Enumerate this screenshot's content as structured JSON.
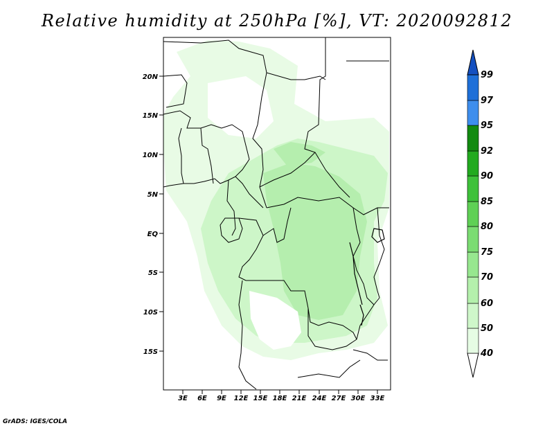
{
  "title": "Relative humidity at 250hPa [%], VT: 2020092812",
  "credit": "GrADS: IGES/COLA",
  "map": {
    "lon_range": [
      0,
      35
    ],
    "lat_range": [
      -20,
      25
    ],
    "lat_ticks": [
      {
        "value": 20,
        "label": "20N"
      },
      {
        "value": 15,
        "label": "15N"
      },
      {
        "value": 10,
        "label": "10N"
      },
      {
        "value": 5,
        "label": "5N"
      },
      {
        "value": 0,
        "label": "EQ"
      },
      {
        "value": -5,
        "label": "5S"
      },
      {
        "value": -10,
        "label": "10S"
      },
      {
        "value": -15,
        "label": "15S"
      }
    ],
    "lon_ticks": [
      {
        "value": 3,
        "label": "3E"
      },
      {
        "value": 6,
        "label": "6E"
      },
      {
        "value": 9,
        "label": "9E"
      },
      {
        "value": 12,
        "label": "12E"
      },
      {
        "value": 15,
        "label": "15E"
      },
      {
        "value": 18,
        "label": "18E"
      },
      {
        "value": 21,
        "label": "21E"
      },
      {
        "value": 24,
        "label": "24E"
      },
      {
        "value": 27,
        "label": "27E"
      },
      {
        "value": 30,
        "label": "30E"
      },
      {
        "value": 33,
        "label": "33E"
      }
    ]
  },
  "colorbar": {
    "levels": [
      "40",
      "50",
      "60",
      "70",
      "75",
      "80",
      "85",
      "90",
      "92",
      "95",
      "97",
      "99"
    ],
    "colors": [
      "#ffffff",
      "#e6fce4",
      "#cff7ca",
      "#b4f0ac",
      "#97e78f",
      "#7bdc72",
      "#5fd055",
      "#3ec13a",
      "#22aa1f",
      "#128a10",
      "#3e8eed",
      "#1e6fd8",
      "#1450c0"
    ]
  },
  "colors": {
    "light": "#e8fbe5",
    "mid": "#cdf6c8",
    "dark": "#b5eeae",
    "border": "#000000"
  }
}
